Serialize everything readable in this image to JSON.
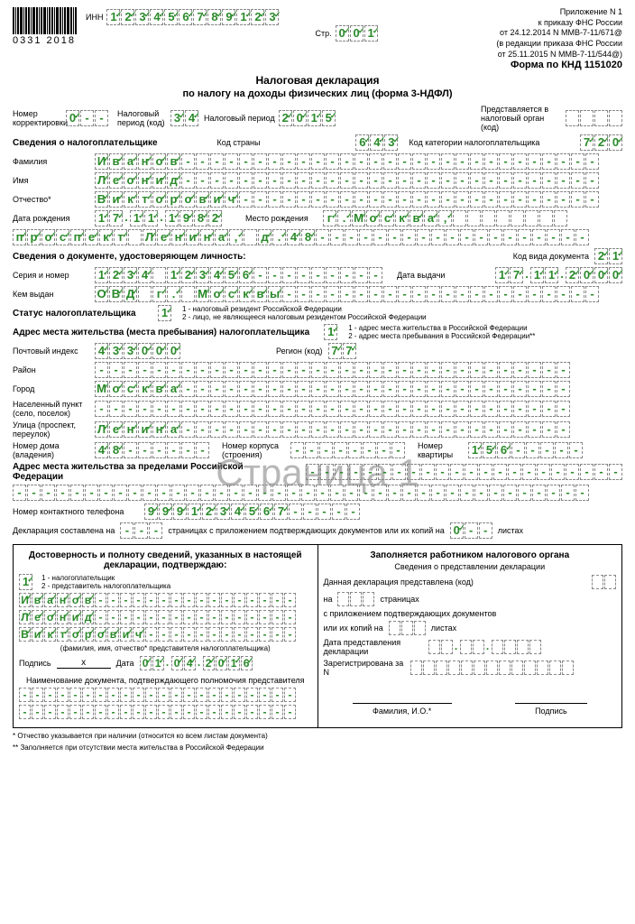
{
  "barcode_number": "0331 2018",
  "inn_label": "ИНН",
  "inn": "123456789123",
  "page_label": "Стр.",
  "page_num": "001",
  "top_right": [
    "Приложение N 1",
    "к приказу ФНС России",
    "от 24.12.2014 N ММВ-7-11/671@",
    "(в редакции приказа ФНС России",
    "от 25.11.2015 N ММВ-7-11/544@)"
  ],
  "form_code": "Форма по КНД 1151020",
  "title": "Налоговая декларация",
  "subtitle": "по налогу на доходы физических лиц (форма 3-НДФЛ)",
  "correction_lbl": "Номер корректировки",
  "correction": "0--",
  "tax_period_code_lbl": "Налоговый период (код)",
  "tax_period_code": "34",
  "tax_period_lbl": "Налоговый период",
  "tax_period": "2015",
  "submit_to_lbl": "Представляется в налоговый орган (код)",
  "submit_to": "    ",
  "taxpayer_info_lbl": "Сведения о налогоплательщике",
  "country_code_lbl": "Код страны",
  "country_code": "643",
  "taxpayer_cat_lbl": "Код категории налогоплательщика",
  "taxpayer_cat": "720",
  "surname_lbl": "Фамилия",
  "surname": "Иванов",
  "name_lbl": "Имя",
  "name": "Леонид",
  "patronymic_lbl": "Отчество*",
  "patronymic": "Викторович",
  "dob_lbl": "Дата рождения",
  "dob": "17.11.1982",
  "pob_lbl": "Место рождения",
  "pob1": "г.Москва,",
  "pob2": "проспект Ленина, д.48",
  "id_doc_lbl": "Сведения о документе, удостоверяющем личность:",
  "doc_type_lbl": "Код вида документа",
  "doc_type": "21",
  "series_lbl": "Серия и номер",
  "series": "1234 123456",
  "issue_date_lbl": "Дата выдачи",
  "issue_date": "17.11.2000",
  "issued_by_lbl": "Кем выдан",
  "issued_by": "ОВД г. Москвы",
  "status_lbl": "Статус налогоплательщика",
  "status": "1",
  "status_note1": "1 - налоговый резидент Российской Федерации",
  "status_note2": "2 - лицо, не являющееся налоговым резидентом Российской Федерации",
  "address_lbl": "Адрес места жительства (места пребывания) налогоплательщика",
  "address_type": "1",
  "address_note1": "1 - адрес места жительства в Российской Федерации",
  "address_note2": "2 - адрес места пребывания в Российской Федерации**",
  "postcode_lbl": "Почтовый индекс",
  "postcode": "433000",
  "region_lbl": "Регион (код)",
  "region": "77",
  "district_lbl": "Район",
  "district": "",
  "city_lbl": "Город",
  "city": "Москва",
  "locality_lbl": "Населенный пункт (село, поселок)",
  "locality": "",
  "street_lbl": "Улица (проспект, переулок)",
  "street": "Ленина",
  "house_lbl": "Номер дома (владения)",
  "house": "48",
  "building_lbl": "Номер корпуса (строения)",
  "building": "",
  "apt_lbl": "Номер квартиры",
  "apt": "156",
  "foreign_addr_lbl": "Адрес места жительства за пределами Российской Федерации",
  "phone_lbl": "Номер контактного телефона",
  "phone": "9991234567",
  "decl_pages_lbl1": "Декларация составлена на",
  "decl_pages_lbl2": "страницах с приложением подтверждающих документов или их копий на",
  "decl_pages_lbl3": "листах",
  "decl_pages": "",
  "decl_attach": "0--",
  "confirm_title": "Достоверность и полноту сведений, указанных в настоящей декларации, подтверждаю:",
  "confirm_type": "1",
  "confirm_note1": "1 - налогоплательщик",
  "confirm_note2": "2 - представитель налогоплательщика",
  "confirm_surname": "Иванов",
  "confirm_name": "Леонид",
  "confirm_patronymic": "Викторович",
  "rep_fio_note": "(фамилия, имя, отчество* представителя налогоплательщика)",
  "sign_lbl": "Подпись",
  "date_lbl": "Дата",
  "sign_date": "01.04.2016",
  "rep_doc_lbl": "Наименование документа, подтверждающего полномочия представителя",
  "official_title": "Заполняется работником налогового органа",
  "official_sub": "Сведения о представлении декларации",
  "official_code_lbl": "Данная декларация представлена (код)",
  "official_pages_lbl1": "на",
  "official_pages_lbl2": "страницах",
  "official_attach_lbl": "с приложением подтверждающих документов",
  "official_copies_lbl1": "или их копий на",
  "official_copies_lbl2": "листах",
  "official_date_lbl": "Дата представления декларации",
  "official_reg_lbl": "Зарегистрирована за N",
  "official_fio_lbl": "Фамилия, И.О.*",
  "official_sign_lbl": "Подпись",
  "footnote1": "* Отчество указывается при наличии (относится ко всем листам документа)",
  "footnote2": "** Заполняется при отсутствии места жительства в Российской Федерации",
  "watermark": "Страница 1",
  "fill_char": "-"
}
